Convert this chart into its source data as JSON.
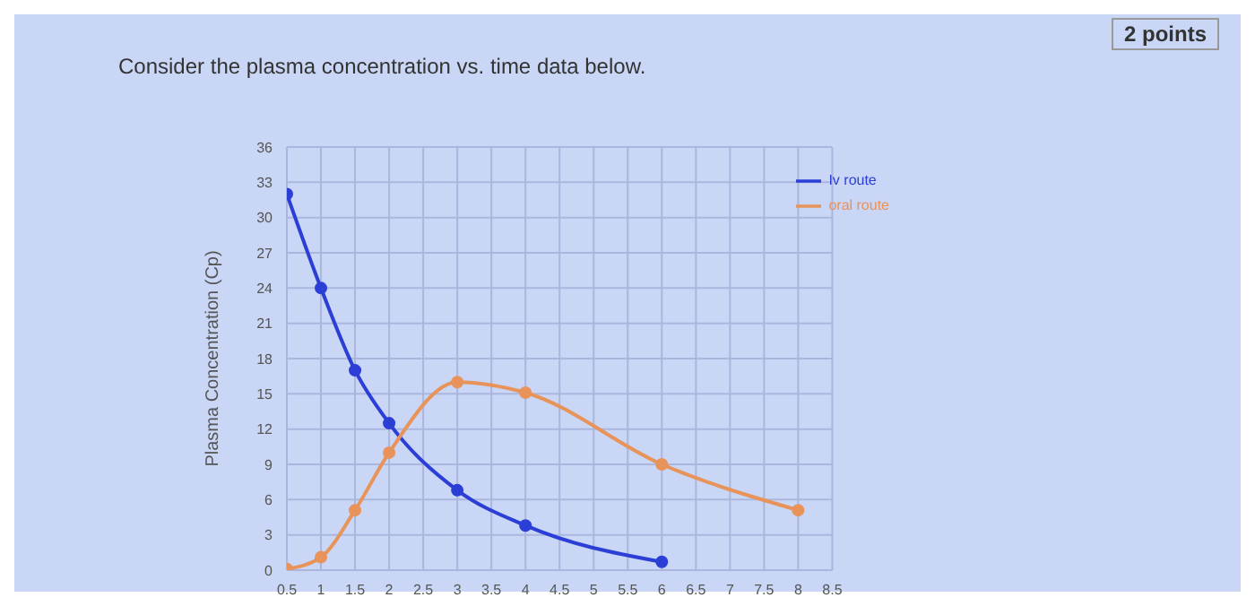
{
  "chart_data": {
    "type": "line",
    "title": "Consider the plasma concentration vs. time data below.",
    "ylabel": "Plasma Concentration (Cp)",
    "annotations": [
      "2 points"
    ],
    "xlim": [
      0.5,
      8.5
    ],
    "xticks": [
      0.5,
      1,
      1.5,
      2,
      2.5,
      3,
      3.5,
      4,
      4.5,
      5,
      5.5,
      6,
      6.5,
      7,
      7.5,
      8,
      8.5
    ],
    "ylim": [
      0,
      36
    ],
    "yticks": [
      0,
      3,
      6,
      9,
      12,
      15,
      18,
      21,
      24,
      27,
      30,
      33,
      36
    ],
    "series": [
      {
        "name": "Iv route",
        "color": "#2b3fd6",
        "x": [
          0.5,
          1,
          1.5,
          2,
          3,
          4,
          6
        ],
        "values": [
          32,
          24,
          17,
          12.5,
          6.8,
          3.8,
          0.7
        ]
      },
      {
        "name": "oral route",
        "color": "#e8935a",
        "x": [
          0.5,
          1,
          1.5,
          2,
          3,
          4,
          6,
          8
        ],
        "values": [
          0.1,
          1.1,
          5.1,
          10,
          16,
          15.1,
          9,
          5.1
        ]
      }
    ],
    "grid": true,
    "legend": "top right",
    "marker": "circle",
    "line_style": "solid"
  }
}
